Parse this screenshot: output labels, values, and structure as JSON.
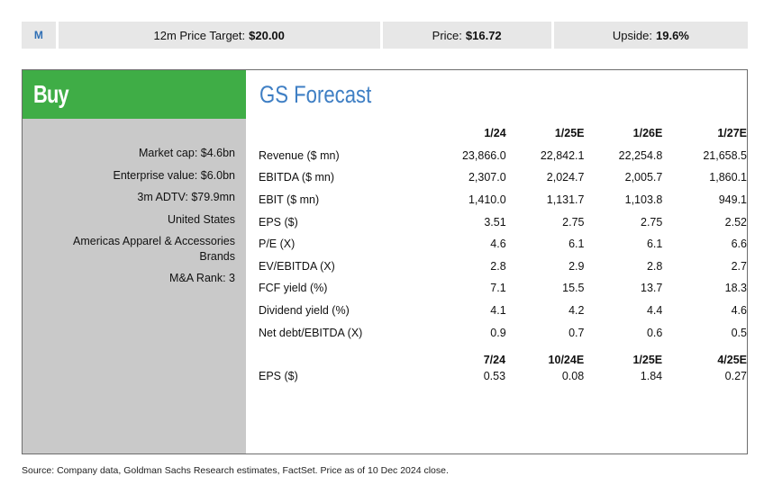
{
  "topbar": {
    "logo": "M",
    "target_label": "12m Price Target:",
    "target_value": "$20.00",
    "price_label": "Price:",
    "price_value": "$16.72",
    "upside_label": "Upside:",
    "upside_value": "19.6%"
  },
  "rating": "Buy",
  "stats": {
    "market_cap": "Market cap: $4.6bn",
    "enterprise_value": "Enterprise value: $6.0bn",
    "adtv": "3m ADTV: $79.9mn",
    "country": "United States",
    "sector_line1": "Americas Apparel & Accessories",
    "sector_line2": "Brands",
    "ma_rank": "M&A Rank: 3"
  },
  "forecast": {
    "title": "GS Forecast",
    "annual_headers": [
      "1/24",
      "1/25E",
      "1/26E",
      "1/27E"
    ],
    "annual_rows": [
      {
        "label": "Revenue ($ mn)",
        "values": [
          "23,866.0",
          "22,842.1",
          "22,254.8",
          "21,658.5"
        ]
      },
      {
        "label": "EBITDA ($ mn)",
        "values": [
          "2,307.0",
          "2,024.7",
          "2,005.7",
          "1,860.1"
        ]
      },
      {
        "label": "EBIT ($ mn)",
        "values": [
          "1,410.0",
          "1,131.7",
          "1,103.8",
          "949.1"
        ]
      },
      {
        "label": "EPS ($)",
        "values": [
          "3.51",
          "2.75",
          "2.75",
          "2.52"
        ]
      },
      {
        "label": "P/E (X)",
        "values": [
          "4.6",
          "6.1",
          "6.1",
          "6.6"
        ]
      },
      {
        "label": "EV/EBITDA (X)",
        "values": [
          "2.8",
          "2.9",
          "2.8",
          "2.7"
        ]
      },
      {
        "label": "FCF yield (%)",
        "values": [
          "7.1",
          "15.5",
          "13.7",
          "18.3"
        ]
      },
      {
        "label": "Dividend yield (%)",
        "values": [
          "4.1",
          "4.2",
          "4.4",
          "4.6"
        ]
      },
      {
        "label": "Net debt/EBITDA (X)",
        "values": [
          "0.9",
          "0.7",
          "0.6",
          "0.5"
        ]
      }
    ],
    "quarterly_headers": [
      "7/24",
      "10/24E",
      "1/25E",
      "4/25E"
    ],
    "quarterly_rows": [
      {
        "label": "EPS ($)",
        "values": [
          "0.53",
          "0.08",
          "1.84",
          "0.27"
        ]
      }
    ]
  },
  "source": "Source: Company data, Goldman Sachs Research estimates, FactSet. Price as of 10 Dec 2024 close.",
  "colors": {
    "buy_green": "#3fad46",
    "title_blue": "#3f7fc4",
    "left_panel": "#c9c9c9",
    "topbar": "#e7e7e7"
  }
}
